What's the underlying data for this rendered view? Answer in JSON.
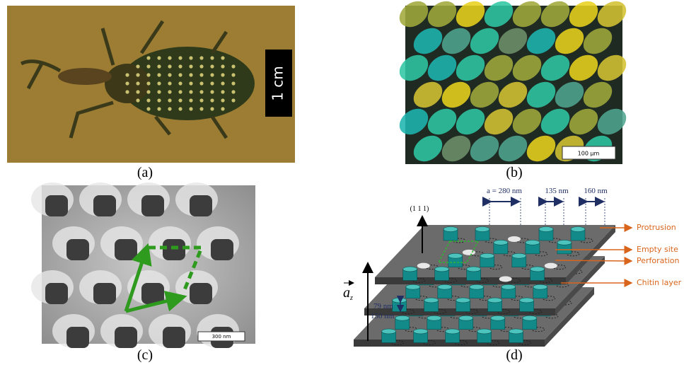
{
  "panels": {
    "a": {
      "label": "(a)",
      "scale_bar": "1 cm"
    },
    "b": {
      "label": "(b)",
      "scale_bar": "100 µm"
    },
    "c": {
      "label": "(c)",
      "scale_bar": "300 nm"
    },
    "d": {
      "label": "(d)",
      "lattice_constant": "a = 280 nm",
      "width_1": "135 nm",
      "width_2": "160 nm",
      "direction": "(1 1 1)",
      "axis": "a",
      "axis_subscript": "z",
      "layer_thickness": "79 nm",
      "layer_spacing": "150 nm",
      "callouts": [
        "Protrusion",
        "Empty site",
        "Perforation",
        "Chitin layer"
      ]
    }
  }
}
